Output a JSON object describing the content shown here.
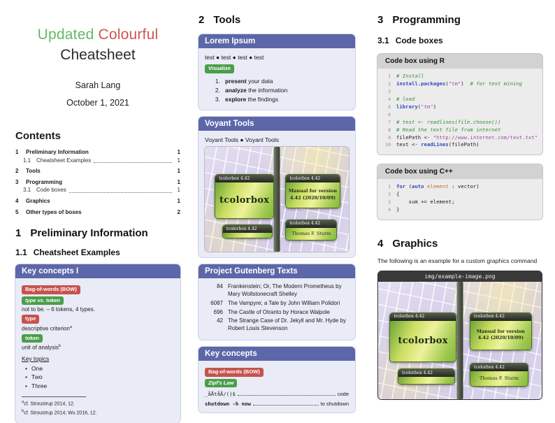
{
  "titleblock": {
    "word1": "Updated",
    "word2": "Colourful",
    "line2": "Cheatsheet",
    "author": "Sarah Lang",
    "date": "October 1, 2021"
  },
  "colors": {
    "accent_purple": "#5b67a8",
    "badge_red": "#c5534e",
    "badge_green": "#4a9e4a",
    "title_green": "#66b768",
    "title_red": "#cd564e"
  },
  "toc": {
    "heading": "Contents",
    "items": [
      {
        "num": "1",
        "label": "Preliminary Information",
        "page": "1"
      },
      {
        "num": "1.1",
        "label": "Cheatsheet Examples",
        "page": "1"
      },
      {
        "num": "2",
        "label": "Tools",
        "page": "1"
      },
      {
        "num": "3",
        "label": "Programming",
        "page": "1"
      },
      {
        "num": "3.1",
        "label": "Code boxes",
        "page": "1"
      },
      {
        "num": "4",
        "label": "Graphics",
        "page": "1"
      },
      {
        "num": "5",
        "label": "Other types of boxes",
        "page": "2"
      }
    ]
  },
  "sec1": {
    "num": "1",
    "title": "Preliminary Information"
  },
  "sec11": {
    "num": "1.1",
    "title": "Cheatsheet Examples"
  },
  "keybox1": {
    "title": "Key concepts I",
    "badge_bow": "Bag-of-words (BOW)",
    "badge_type_token": "type vs. token",
    "type_token_text": "not to be. – 6 tokens, 4 types.",
    "badge_type": "type",
    "type_text": "descriptive criterion",
    "type_marker": "a",
    "badge_token": "token",
    "token_text": "unit of analysis",
    "token_marker": "b",
    "key_topics": "Key topics",
    "bullets": [
      "One",
      "Two",
      "Three"
    ],
    "footnotes": [
      {
        "marker": "a",
        "text": "cf. Stroustrup 2014, 12."
      },
      {
        "marker": "b",
        "text": "cf. Stroustrup 2014; Wu 2016, 12."
      }
    ]
  },
  "sec2": {
    "num": "2",
    "title": "Tools"
  },
  "lorem": {
    "title": "Lorem Ipsum",
    "tests_line": "test ● test ● test ● test",
    "badge": "Visualize",
    "steps": [
      {
        "num": "1.",
        "bold": "present",
        "rest": " your data"
      },
      {
        "num": "2.",
        "bold": "analyze",
        "rest": " the information"
      },
      {
        "num": "3.",
        "bold": "explore",
        "rest": " the findings"
      }
    ]
  },
  "voyant": {
    "title": "Voyant Tools",
    "links_line": "Voyant Tools ● Voyant Tools"
  },
  "tcb": {
    "bar_label": "tcolorbox 4.42",
    "main": "tcolorbox",
    "manual": "Manual for version 4.42 (2020/10/09)",
    "author": "Thomas F. Sturm"
  },
  "gutenberg": {
    "title": "Project Gutenberg Texts",
    "rows": [
      {
        "id": "84",
        "text": "Frankenstein; Or, The Modern Prometheus by Mary Wollstonecraft Shelley"
      },
      {
        "id": "6087",
        "text": "The Vampyre; a Tale by John William Polidori"
      },
      {
        "id": "696",
        "text": "The Castle of Otranto by Horace Walpole"
      },
      {
        "id": "42",
        "text": "The Strange Case of Dr. Jekyll and Mr. Hyde by Robert Louis Stevenson"
      }
    ]
  },
  "keybox2": {
    "title": "Key concepts",
    "badge_bow": "Bag-of-words (BOW)",
    "badge_zipf": "Zipf's Law",
    "mono1": "_åÅtåÅ/()$",
    "mono1_desc": "code",
    "mono2": "shutdown -h now",
    "mono2_desc": "to shutdown"
  },
  "sec3": {
    "num": "3",
    "title": "Programming"
  },
  "sec31": {
    "num": "3.1",
    "title": "Code boxes"
  },
  "rcode": {
    "title": "Code box using R",
    "lines": [
      [
        {
          "c": "com",
          "t": "# Install"
        }
      ],
      [
        {
          "c": "kw",
          "t": "install.packages"
        },
        {
          "c": "pl",
          "t": "("
        },
        {
          "c": "str",
          "t": "\"tm\""
        },
        {
          "c": "pl",
          "t": ")  "
        },
        {
          "c": "com",
          "t": "# for text mining"
        }
      ],
      [],
      [
        {
          "c": "com",
          "t": "# load"
        }
      ],
      [
        {
          "c": "kw",
          "t": "library"
        },
        {
          "c": "pl",
          "t": "("
        },
        {
          "c": "str",
          "t": "\"tm\""
        },
        {
          "c": "pl",
          "t": ")"
        }
      ],
      [],
      [
        {
          "c": "com",
          "t": "# test <- readlines(file.choose())"
        }
      ],
      [
        {
          "c": "com",
          "t": "# Read the text file from internet"
        }
      ],
      [
        {
          "c": "pl",
          "t": "filePath <- "
        },
        {
          "c": "str",
          "t": "\"http://www.internet.com/text.txt\""
        }
      ],
      [
        {
          "c": "pl",
          "t": "text <- "
        },
        {
          "c": "kw",
          "t": "readLines"
        },
        {
          "c": "pl",
          "t": "(filePath)"
        }
      ]
    ]
  },
  "cppcode": {
    "title": "Code box using C++",
    "lines": [
      [
        {
          "c": "kw",
          "t": "for"
        },
        {
          "c": "pl",
          "t": " ("
        },
        {
          "c": "kw",
          "t": "auto"
        },
        {
          "c": "pl",
          "t": " "
        },
        {
          "c": "var",
          "t": "element"
        },
        {
          "c": "pl",
          "t": " : vector)"
        }
      ],
      [
        {
          "c": "pl",
          "t": "{"
        }
      ],
      [
        {
          "c": "pl",
          "t": "    sum += element;"
        }
      ],
      [
        {
          "c": "pl",
          "t": "}"
        }
      ]
    ]
  },
  "sec4": {
    "num": "4",
    "title": "Graphics"
  },
  "graphics": {
    "caption": "The following is an example for a custom graphics command",
    "filename": "img/example-image.png"
  }
}
